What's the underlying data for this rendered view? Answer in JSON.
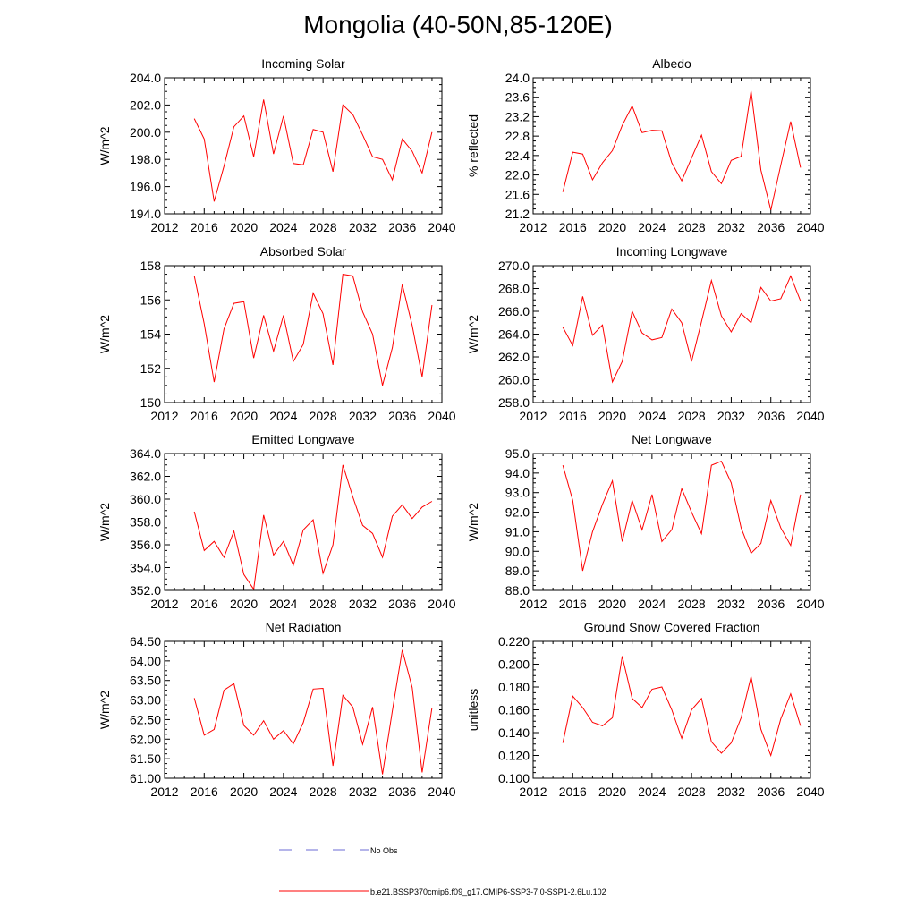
{
  "figure": {
    "title": "Mongolia (40-50N,85-120E)",
    "line_color": "#ff0000",
    "obs_color": "#6b6bd6"
  },
  "legend": {
    "items": [
      {
        "label": "No Obs",
        "style": "dashed",
        "color": "#6b6bd6"
      },
      {
        "label": "b.e21.BSSP370cmip6.f09_g17.CMIP6-SSP3-7.0-SSP1-2.6Lu.102",
        "style": "solid",
        "color": "#ff0000"
      }
    ]
  },
  "chart_data": [
    {
      "type": "line",
      "title": "Incoming Solar",
      "ylabel": "W/m^2",
      "xlim": [
        2012,
        2040
      ],
      "xticks": [
        "2012",
        "2016",
        "2020",
        "2024",
        "2028",
        "2032",
        "2036",
        "2040"
      ],
      "ylim": [
        194,
        204
      ],
      "yticks": [
        "194.0",
        "196.0",
        "198.0",
        "200.0",
        "202.0",
        "204.0"
      ],
      "x": [
        2015,
        2016,
        2017,
        2018,
        2019,
        2020,
        2021,
        2022,
        2023,
        2024,
        2025,
        2026,
        2027,
        2028,
        2029,
        2030,
        2031,
        2032,
        2033,
        2034,
        2035,
        2036,
        2037,
        2038,
        2039
      ],
      "series": [
        {
          "values": [
            201.0,
            199.5,
            194.9,
            197.5,
            200.4,
            201.2,
            198.2,
            202.4,
            198.4,
            201.2,
            197.7,
            197.6,
            200.2,
            200.0,
            197.1,
            202.0,
            201.3,
            199.8,
            198.2,
            198.0,
            196.5,
            199.5,
            198.6,
            197.0,
            200.0
          ]
        }
      ]
    },
    {
      "type": "line",
      "title": "Albedo",
      "ylabel": "% reflected",
      "xlim": [
        2012,
        2040
      ],
      "xticks": [
        "2012",
        "2016",
        "2020",
        "2024",
        "2028",
        "2032",
        "2036",
        "2040"
      ],
      "ylim": [
        21.2,
        24.0
      ],
      "yticks": [
        "21.2",
        "21.6",
        "22.0",
        "22.4",
        "22.8",
        "23.2",
        "23.6",
        "24.0"
      ],
      "x": [
        2015,
        2016,
        2017,
        2018,
        2019,
        2020,
        2021,
        2022,
        2023,
        2024,
        2025,
        2026,
        2027,
        2028,
        2029,
        2030,
        2031,
        2032,
        2033,
        2034,
        2035,
        2036,
        2037,
        2038,
        2039
      ],
      "series": [
        {
          "values": [
            21.65,
            22.47,
            22.43,
            21.9,
            22.25,
            22.5,
            23.02,
            23.42,
            22.87,
            22.92,
            22.91,
            22.25,
            21.88,
            22.35,
            22.82,
            22.07,
            21.82,
            22.3,
            22.38,
            23.73,
            22.1,
            21.28,
            22.2,
            23.1,
            22.15
          ]
        }
      ]
    },
    {
      "type": "line",
      "title": "Absorbed Solar",
      "ylabel": "W/m^2",
      "xlim": [
        2012,
        2040
      ],
      "xticks": [
        "2012",
        "2016",
        "2020",
        "2024",
        "2028",
        "2032",
        "2036",
        "2040"
      ],
      "ylim": [
        150,
        158
      ],
      "yticks": [
        "150",
        "152",
        "154",
        "156",
        "158"
      ],
      "x": [
        2015,
        2016,
        2017,
        2018,
        2019,
        2020,
        2021,
        2022,
        2023,
        2024,
        2025,
        2026,
        2027,
        2028,
        2029,
        2030,
        2031,
        2032,
        2033,
        2034,
        2035,
        2036,
        2037,
        2038,
        2039
      ],
      "series": [
        {
          "values": [
            157.4,
            154.6,
            151.2,
            154.3,
            155.8,
            155.9,
            152.6,
            155.1,
            153.0,
            155.1,
            152.4,
            153.4,
            156.4,
            155.2,
            152.2,
            157.5,
            157.4,
            155.3,
            154.0,
            151.0,
            153.2,
            156.9,
            154.5,
            151.5,
            155.7
          ]
        }
      ]
    },
    {
      "type": "line",
      "title": "Incoming Longwave",
      "ylabel": "W/m^2",
      "xlim": [
        2012,
        2040
      ],
      "xticks": [
        "2012",
        "2016",
        "2020",
        "2024",
        "2028",
        "2032",
        "2036",
        "2040"
      ],
      "ylim": [
        258,
        270
      ],
      "yticks": [
        "258.0",
        "260.0",
        "262.0",
        "264.0",
        "266.0",
        "268.0",
        "270.0"
      ],
      "x": [
        2015,
        2016,
        2017,
        2018,
        2019,
        2020,
        2021,
        2022,
        2023,
        2024,
        2025,
        2026,
        2027,
        2028,
        2029,
        2030,
        2031,
        2032,
        2033,
        2034,
        2035,
        2036,
        2037,
        2038,
        2039
      ],
      "series": [
        {
          "values": [
            264.6,
            263.0,
            267.3,
            263.9,
            264.8,
            259.8,
            261.6,
            266.0,
            264.1,
            263.5,
            263.7,
            266.2,
            265.0,
            261.6,
            265.1,
            268.7,
            265.6,
            264.2,
            265.8,
            265.0,
            268.1,
            266.9,
            267.1,
            269.1,
            266.9
          ]
        }
      ]
    },
    {
      "type": "line",
      "title": "Emitted Longwave",
      "ylabel": "W/m^2",
      "xlim": [
        2012,
        2040
      ],
      "xticks": [
        "2012",
        "2016",
        "2020",
        "2024",
        "2028",
        "2032",
        "2036",
        "2040"
      ],
      "ylim": [
        352,
        364
      ],
      "yticks": [
        "352.0",
        "354.0",
        "356.0",
        "358.0",
        "360.0",
        "362.0",
        "364.0"
      ],
      "x": [
        2015,
        2016,
        2017,
        2018,
        2019,
        2020,
        2021,
        2022,
        2023,
        2024,
        2025,
        2026,
        2027,
        2028,
        2029,
        2030,
        2031,
        2032,
        2033,
        2034,
        2035,
        2036,
        2037,
        2038,
        2039
      ],
      "series": [
        {
          "values": [
            358.9,
            355.5,
            356.3,
            354.9,
            357.2,
            353.4,
            352.1,
            358.6,
            355.1,
            356.3,
            354.2,
            357.3,
            358.2,
            353.5,
            356.0,
            363.0,
            360.2,
            357.7,
            357.0,
            354.9,
            358.5,
            359.5,
            358.3,
            359.3,
            359.8
          ]
        }
      ]
    },
    {
      "type": "line",
      "title": "Net Longwave",
      "ylabel": "W/m^2",
      "xlim": [
        2012,
        2040
      ],
      "xticks": [
        "2012",
        "2016",
        "2020",
        "2024",
        "2028",
        "2032",
        "2036",
        "2040"
      ],
      "ylim": [
        88,
        95
      ],
      "yticks": [
        "88.0",
        "89.0",
        "90.0",
        "91.0",
        "92.0",
        "93.0",
        "94.0",
        "95.0"
      ],
      "x": [
        2015,
        2016,
        2017,
        2018,
        2019,
        2020,
        2021,
        2022,
        2023,
        2024,
        2025,
        2026,
        2027,
        2028,
        2029,
        2030,
        2031,
        2032,
        2033,
        2034,
        2035,
        2036,
        2037,
        2038,
        2039
      ],
      "series": [
        {
          "values": [
            94.4,
            92.6,
            89.0,
            91.0,
            92.4,
            93.6,
            90.5,
            92.6,
            91.1,
            92.9,
            90.5,
            91.1,
            93.2,
            92.0,
            90.9,
            94.4,
            94.6,
            93.5,
            91.2,
            89.9,
            90.4,
            92.6,
            91.2,
            90.3,
            92.9
          ]
        }
      ]
    },
    {
      "type": "line",
      "title": "Net Radiation",
      "ylabel": "W/m^2",
      "xlim": [
        2012,
        2040
      ],
      "xticks": [
        "2012",
        "2016",
        "2020",
        "2024",
        "2028",
        "2032",
        "2036",
        "2040"
      ],
      "ylim": [
        61,
        64.5
      ],
      "yticks": [
        "61.00",
        "61.50",
        "62.00",
        "62.50",
        "63.00",
        "63.50",
        "64.00",
        "64.50"
      ],
      "x": [
        2015,
        2016,
        2017,
        2018,
        2019,
        2020,
        2021,
        2022,
        2023,
        2024,
        2025,
        2026,
        2027,
        2028,
        2029,
        2030,
        2031,
        2032,
        2033,
        2034,
        2035,
        2036,
        2037,
        2038,
        2039
      ],
      "series": [
        {
          "values": [
            63.05,
            62.1,
            62.25,
            63.25,
            63.42,
            62.35,
            62.1,
            62.47,
            62.0,
            62.22,
            61.88,
            62.42,
            63.28,
            63.3,
            61.32,
            63.12,
            62.82,
            61.87,
            62.82,
            61.1,
            62.72,
            64.28,
            63.32,
            61.15,
            62.8
          ]
        }
      ]
    },
    {
      "type": "line",
      "title": "Ground Snow Covered Fraction",
      "ylabel": "unitless",
      "xlim": [
        2012,
        2040
      ],
      "xticks": [
        "2012",
        "2016",
        "2020",
        "2024",
        "2028",
        "2032",
        "2036",
        "2040"
      ],
      "ylim": [
        0.1,
        0.22
      ],
      "yticks": [
        "0.100",
        "0.120",
        "0.140",
        "0.160",
        "0.180",
        "0.200",
        "0.220"
      ],
      "x": [
        2015,
        2016,
        2017,
        2018,
        2019,
        2020,
        2021,
        2022,
        2023,
        2024,
        2025,
        2026,
        2027,
        2028,
        2029,
        2030,
        2031,
        2032,
        2033,
        2034,
        2035,
        2036,
        2037,
        2038,
        2039
      ],
      "series": [
        {
          "values": [
            0.131,
            0.172,
            0.162,
            0.149,
            0.146,
            0.153,
            0.207,
            0.17,
            0.162,
            0.178,
            0.18,
            0.16,
            0.135,
            0.16,
            0.17,
            0.132,
            0.122,
            0.131,
            0.153,
            0.189,
            0.143,
            0.12,
            0.152,
            0.174,
            0.146
          ]
        }
      ]
    }
  ]
}
